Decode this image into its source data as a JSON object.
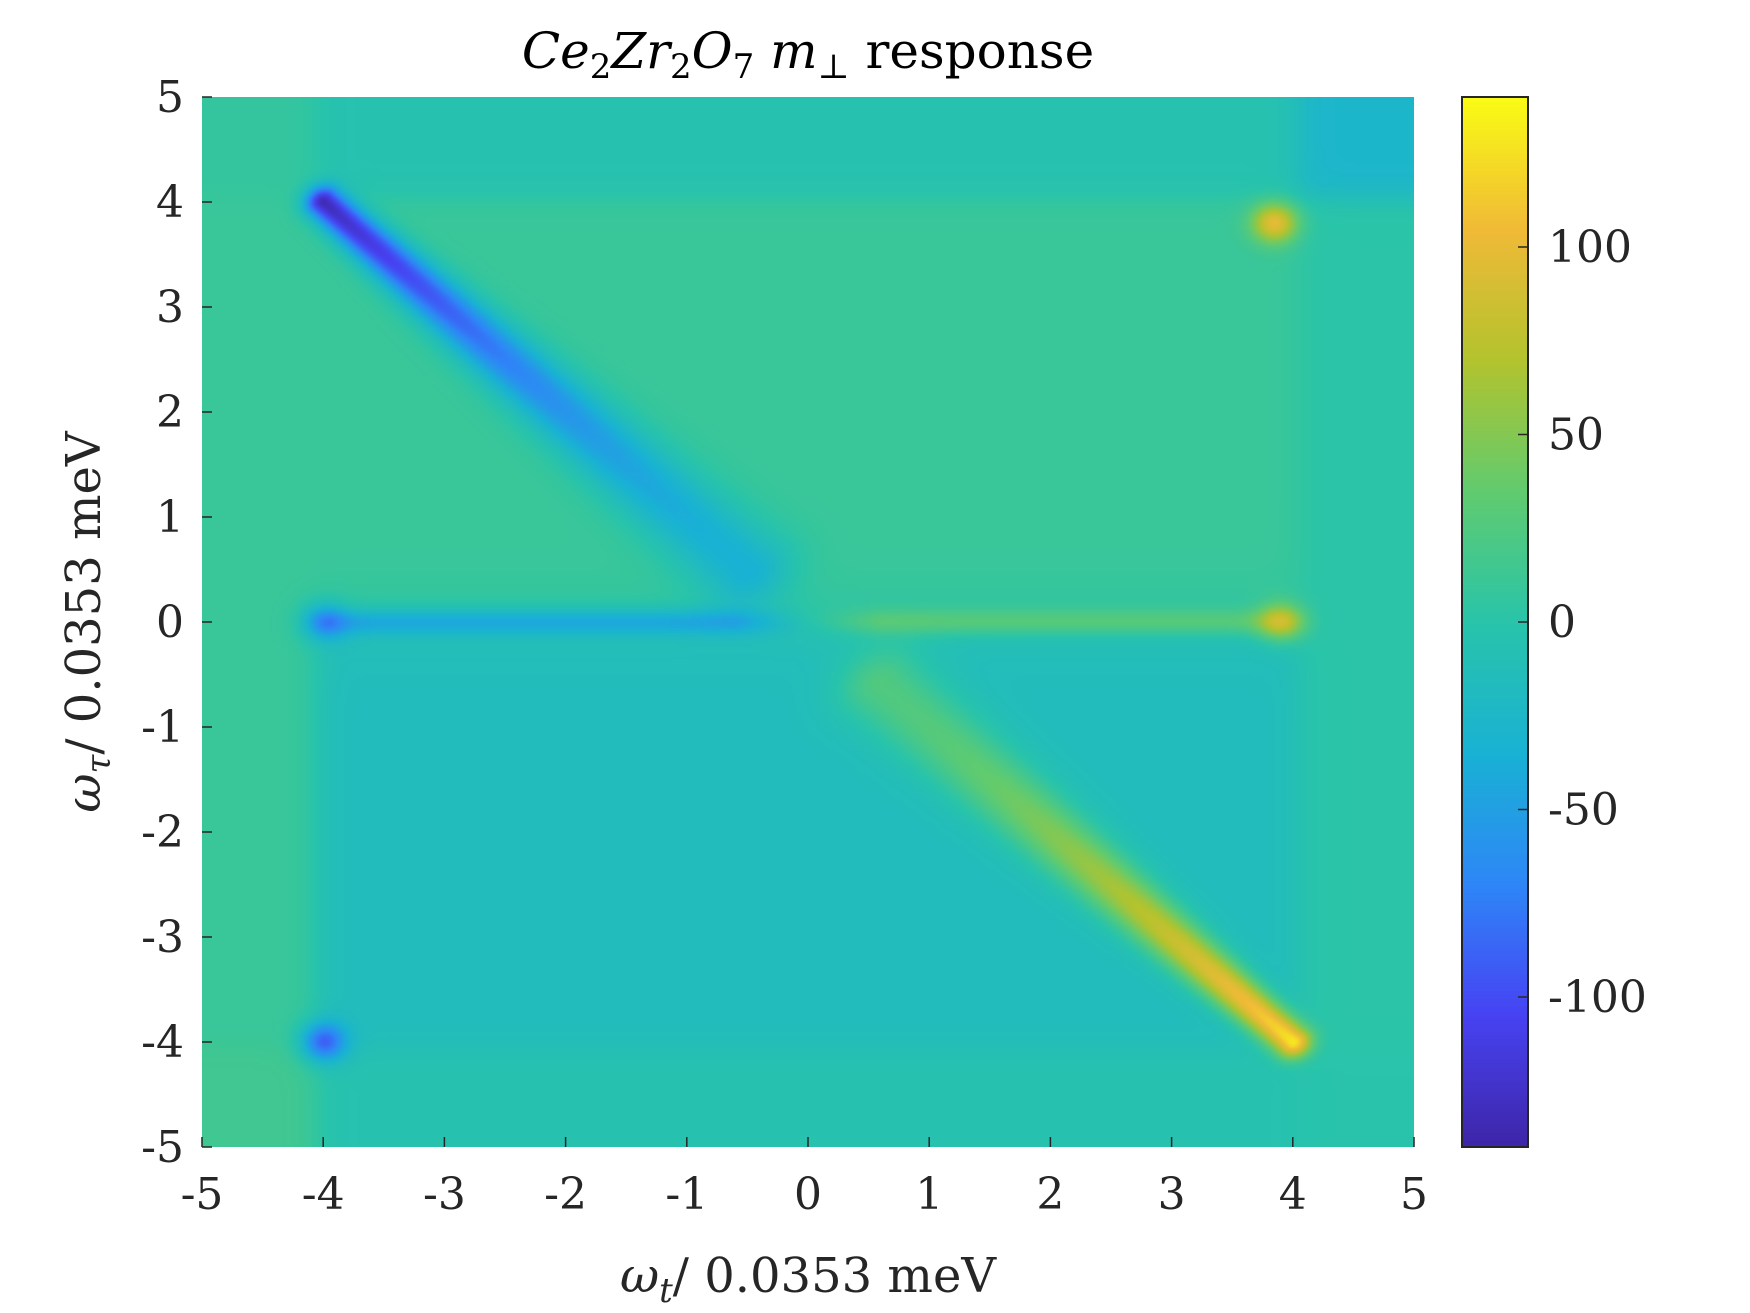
{
  "chart_data": {
    "type": "heatmap",
    "title": {
      "parts": [
        {
          "text": "Ce",
          "style": "italic"
        },
        {
          "text": "2",
          "style": "sub"
        },
        {
          "text": "Zr",
          "style": "italic"
        },
        {
          "text": "2",
          "style": "sub"
        },
        {
          "text": "O",
          "style": "italic"
        },
        {
          "text": "7",
          "style": "sub"
        },
        {
          "text": " m",
          "style": "italic"
        },
        {
          "text": "⊥",
          "style": "sub"
        },
        {
          "text": " response",
          "style": "normal"
        }
      ]
    },
    "xlabel": {
      "symbol": "ω",
      "sub": "t",
      "rest": "/ 0.0353 meV"
    },
    "ylabel": {
      "symbol": "ω",
      "sub": "τ",
      "rest": "/ 0.0353 meV"
    },
    "xlim": [
      -5,
      5
    ],
    "ylim": [
      -5,
      5
    ],
    "xticks": [
      -5,
      -4,
      -3,
      -2,
      -1,
      0,
      1,
      2,
      3,
      4,
      5
    ],
    "yticks": [
      -5,
      -4,
      -3,
      -2,
      -1,
      0,
      1,
      2,
      3,
      4,
      5
    ],
    "colorbar": {
      "clim": [
        -140,
        140
      ],
      "ticks": [
        -100,
        -50,
        0,
        50,
        100
      ],
      "colormap": "parula",
      "colormap_stops": [
        "#3e26a8",
        "#4743f3",
        "#2e87f7",
        "#19b2d4",
        "#29c4aa",
        "#61cb6f",
        "#b3c32e",
        "#f0ba37",
        "#f9fb15"
      ]
    },
    "background_value": -5,
    "features": [
      {
        "name": "anti-diagonal negative streak",
        "from": [
          -4,
          4
        ],
        "to": [
          -0.5,
          0.5
        ],
        "peak_value": -140,
        "tail_value": -45
      },
      {
        "name": "anti-diagonal positive streak",
        "from": [
          4,
          -4
        ],
        "to": [
          0.6,
          -0.6
        ],
        "peak_value": 138,
        "tail_value": 40
      },
      {
        "name": "spot",
        "at": [
          3.85,
          3.8
        ],
        "value": 95
      },
      {
        "name": "spot",
        "at": [
          -4,
          -4
        ],
        "value": -80
      },
      {
        "name": "spot",
        "at": [
          3.9,
          0
        ],
        "value": 70
      },
      {
        "name": "spot",
        "at": [
          -4,
          0
        ],
        "value": -45
      },
      {
        "name": "horizontal band",
        "y": 0,
        "x_range": [
          -4,
          4
        ],
        "left_value": -40,
        "right_value": 30
      },
      {
        "name": "upper region",
        "y_range": [
          0,
          4
        ],
        "x_range": [
          -4,
          4
        ],
        "value": 10
      },
      {
        "name": "lower region",
        "y_range": [
          -4,
          0
        ],
        "x_range": [
          -4,
          4
        ],
        "value": -15
      }
    ]
  }
}
